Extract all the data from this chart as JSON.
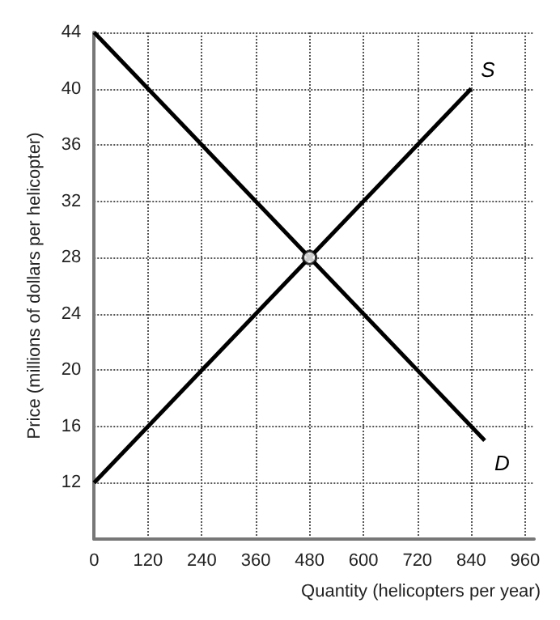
{
  "chart_data": {
    "type": "line",
    "xlabel": "Quantity (helicopters per year)",
    "ylabel": "Price (millions of dollars per helicopter)",
    "series": [
      {
        "name": "S",
        "x": [
          0,
          840
        ],
        "values": [
          12,
          40
        ],
        "color": "#000000",
        "marker": "none"
      },
      {
        "name": "D",
        "x": [
          0,
          870
        ],
        "values": [
          44,
          15
        ],
        "color": "#000000",
        "marker": "none"
      },
      {
        "type": "scatter",
        "x": [
          480
        ],
        "values": [
          28
        ],
        "color": "#000000",
        "marker": "circle"
      }
    ],
    "xlim": [
      0,
      980
    ],
    "xticks": [
      0,
      120,
      240,
      360,
      480,
      600,
      720,
      840,
      960
    ],
    "ylim": [
      8,
      44
    ],
    "yticks": [
      12,
      16,
      20,
      24,
      28,
      32,
      36,
      40,
      44
    ],
    "grid": true,
    "line_style": "solid"
  }
}
